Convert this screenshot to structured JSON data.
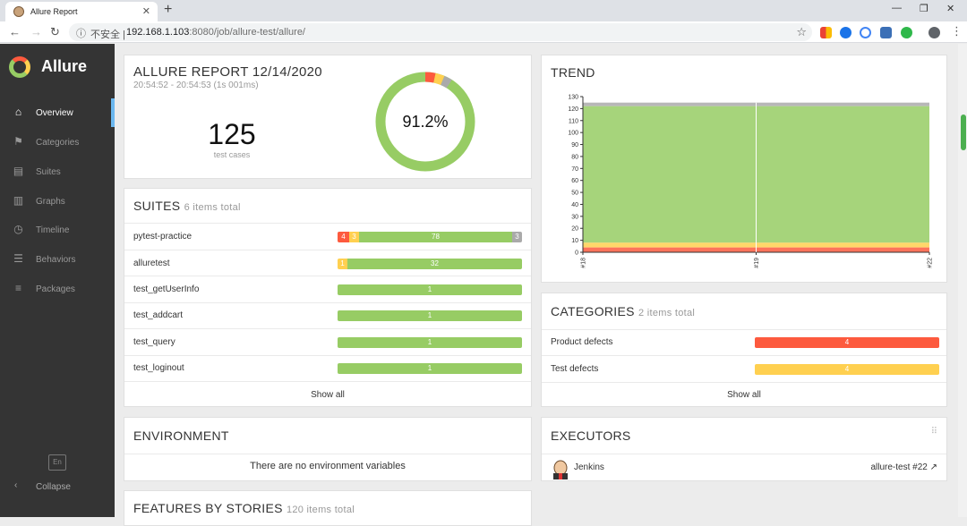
{
  "browser": {
    "tab_title": "Allure Report",
    "new_tab": "+",
    "address_insecure": "不安全",
    "address_separator": "|",
    "address_host": "192.168.1.103",
    "address_path": ":8080/job/allure-test/allure/"
  },
  "sidebar": {
    "brand": "Allure",
    "items": [
      {
        "label": "Overview",
        "icon": "home-icon",
        "glyph": "⌂"
      },
      {
        "label": "Categories",
        "icon": "flag-icon",
        "glyph": "⚑"
      },
      {
        "label": "Suites",
        "icon": "briefcase-icon",
        "glyph": "▤"
      },
      {
        "label": "Graphs",
        "icon": "bar-chart-icon",
        "glyph": "▥"
      },
      {
        "label": "Timeline",
        "icon": "clock-icon",
        "glyph": "◷"
      },
      {
        "label": "Behaviors",
        "icon": "list-icon",
        "glyph": "☰"
      },
      {
        "label": "Packages",
        "icon": "align-left-icon",
        "glyph": "≡"
      }
    ],
    "lang": "En",
    "collapse": "Collapse"
  },
  "summary": {
    "title": "ALLURE REPORT 12/14/2020",
    "time_range": "20:54:52 - 20:54:53 (1s 001ms)",
    "total": "125",
    "total_label": "test cases",
    "percent": "91.2%"
  },
  "trend": {
    "title": "TREND",
    "y_ticks": [
      "130",
      "120",
      "110",
      "100",
      "90",
      "80",
      "70",
      "60",
      "50",
      "40",
      "30",
      "20",
      "10",
      "0"
    ],
    "x_labels": [
      "#18",
      "#19",
      "#22"
    ]
  },
  "suites": {
    "title": "SUITES",
    "count_text": "6 items total",
    "rows": [
      {
        "name": "pytest-practice",
        "failed": "4",
        "broken": "3",
        "passed": "78",
        "skipped": "3"
      },
      {
        "name": "alluretest",
        "broken": "1",
        "passed": "32"
      },
      {
        "name": "test_getUserInfo",
        "passed": "1"
      },
      {
        "name": "test_addcart",
        "passed": "1"
      },
      {
        "name": "test_query",
        "passed": "1"
      },
      {
        "name": "test_loginout",
        "passed": "1"
      }
    ],
    "show_all": "Show all"
  },
  "categories": {
    "title": "CATEGORIES",
    "count_text": "2 items total",
    "rows": [
      {
        "name": "Product defects",
        "value": "4"
      },
      {
        "name": "Test defects",
        "value": "4"
      }
    ],
    "show_all": "Show all"
  },
  "environment": {
    "title": "ENVIRONMENT",
    "empty": "There are no environment variables"
  },
  "executors": {
    "title": "EXECUTORS",
    "name": "Jenkins",
    "build": "allure-test #22"
  },
  "features": {
    "title": "FEATURES BY STORIES",
    "count_text": "120 items total"
  },
  "colors": {
    "failed": "#fd5a3e",
    "broken": "#ffd050",
    "passed": "#97cc64",
    "skipped": "#aaaaaa",
    "sidebar": "#343434"
  }
}
